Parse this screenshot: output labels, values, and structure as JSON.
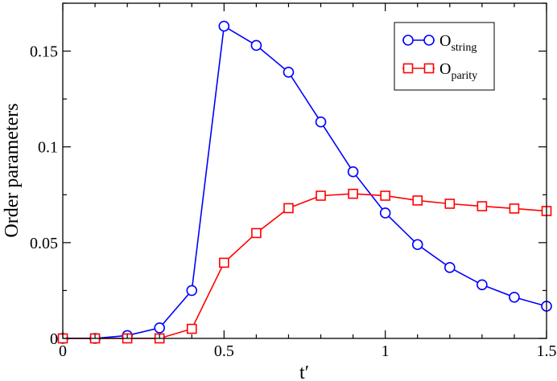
{
  "chart_data": {
    "type": "line",
    "title": "",
    "xlabel": "t′",
    "ylabel": "Order parameters",
    "xlim": [
      0,
      1.5
    ],
    "ylim": [
      0,
      0.175
    ],
    "x_ticks": [
      {
        "value": 0,
        "label": "0"
      },
      {
        "value": 0.5,
        "label": "0.5"
      },
      {
        "value": 1,
        "label": "1"
      },
      {
        "value": 1.5,
        "label": "1.5"
      }
    ],
    "y_ticks": [
      {
        "value": 0,
        "label": "0"
      },
      {
        "value": 0.05,
        "label": "0.05"
      },
      {
        "value": 0.1,
        "label": "0.1"
      },
      {
        "value": 0.15,
        "label": "0.15"
      }
    ],
    "grid": false,
    "legend_position": "top-right",
    "series": [
      {
        "name": "O",
        "name_subscript": "string",
        "color": "#0000ff",
        "marker": "circle",
        "x": [
          0,
          0.1,
          0.2,
          0.3,
          0.4,
          0.5,
          0.6,
          0.7,
          0.8,
          0.9,
          1.0,
          1.1,
          1.2,
          1.3,
          1.4,
          1.5
        ],
        "values": [
          0,
          0,
          0.0015,
          0.0055,
          0.025,
          0.163,
          0.153,
          0.139,
          0.113,
          0.087,
          0.0655,
          0.049,
          0.037,
          0.028,
          0.0215,
          0.0168
        ]
      },
      {
        "name": "O",
        "name_subscript": "parity",
        "color": "#ff0000",
        "marker": "square",
        "x": [
          0,
          0.1,
          0.2,
          0.3,
          0.4,
          0.5,
          0.6,
          0.7,
          0.8,
          0.9,
          1.0,
          1.1,
          1.2,
          1.3,
          1.4,
          1.5
        ],
        "values": [
          0,
          0,
          0,
          0,
          0.005,
          0.0395,
          0.055,
          0.068,
          0.0745,
          0.0755,
          0.0745,
          0.072,
          0.0703,
          0.069,
          0.0678,
          0.0665
        ]
      }
    ]
  }
}
